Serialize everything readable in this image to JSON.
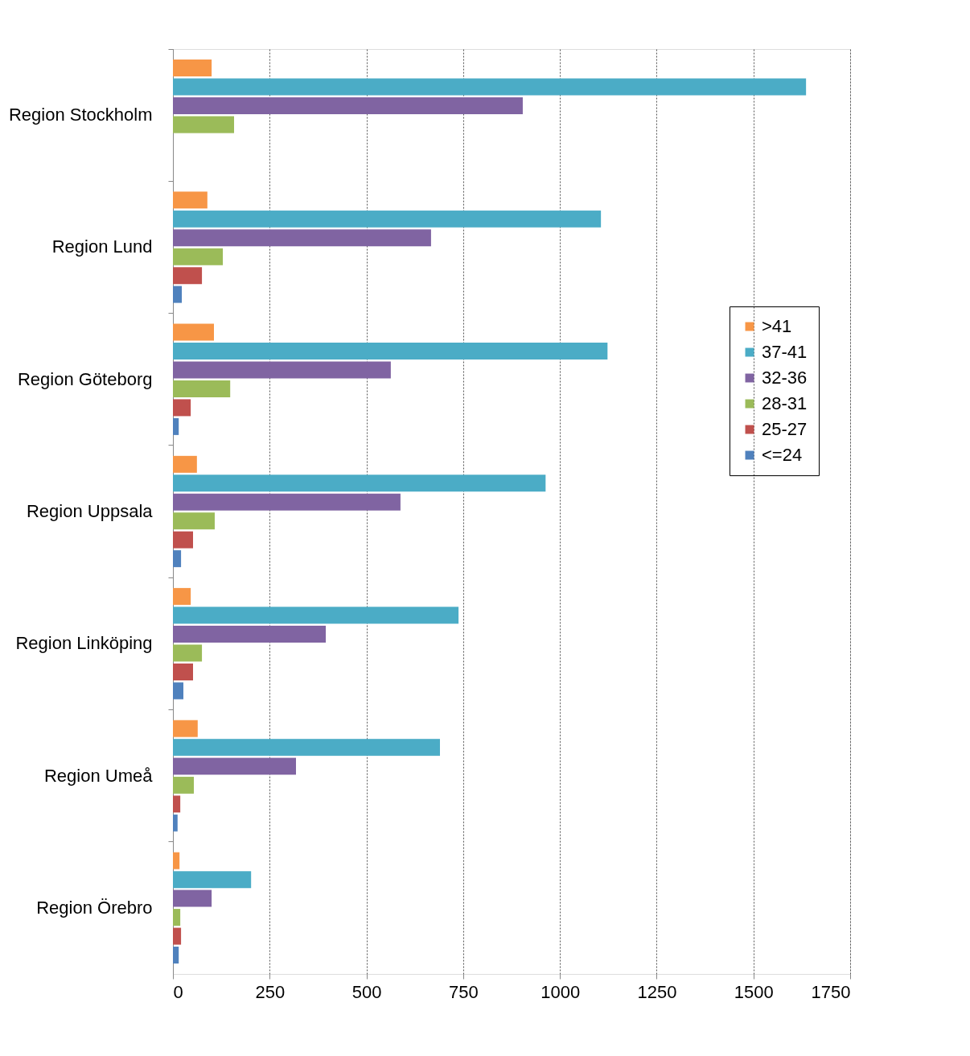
{
  "chart_data": {
    "type": "bar",
    "orientation": "horizontal",
    "categories": [
      "Region Stockholm",
      "Region Lund",
      "Region Göteborg",
      "Region Uppsala",
      "Region Linköping",
      "Region Umeå",
      "Region Örebro"
    ],
    "series": [
      {
        "name": ">41",
        "color": "#f79646",
        "values": [
          100,
          89,
          106,
          62,
          46,
          64,
          17
        ]
      },
      {
        "name": "37-41",
        "color": "#4bacc6",
        "values": [
          1636,
          1106,
          1123,
          963,
          738,
          690,
          202
        ]
      },
      {
        "name": "32-36",
        "color": "#8064a2",
        "values": [
          904,
          667,
          563,
          588,
          395,
          318,
          100
        ]
      },
      {
        "name": "28-31",
        "color": "#9bbb59",
        "values": [
          158,
          129,
          148,
          108,
          75,
          54,
          19
        ]
      },
      {
        "name": "25-27",
        "color": "#c0504d",
        "values": [
          null,
          75,
          46,
          52,
          52,
          19,
          21
        ]
      },
      {
        "name": "<=24",
        "color": "#4f81bd",
        "values": [
          null,
          23,
          15,
          21,
          27,
          12,
          15
        ]
      }
    ],
    "xlim": [
      0,
      1750
    ],
    "xticks": [
      0,
      250,
      500,
      750,
      1000,
      1250,
      1500,
      1750
    ],
    "grid": "x",
    "legend": "right"
  }
}
